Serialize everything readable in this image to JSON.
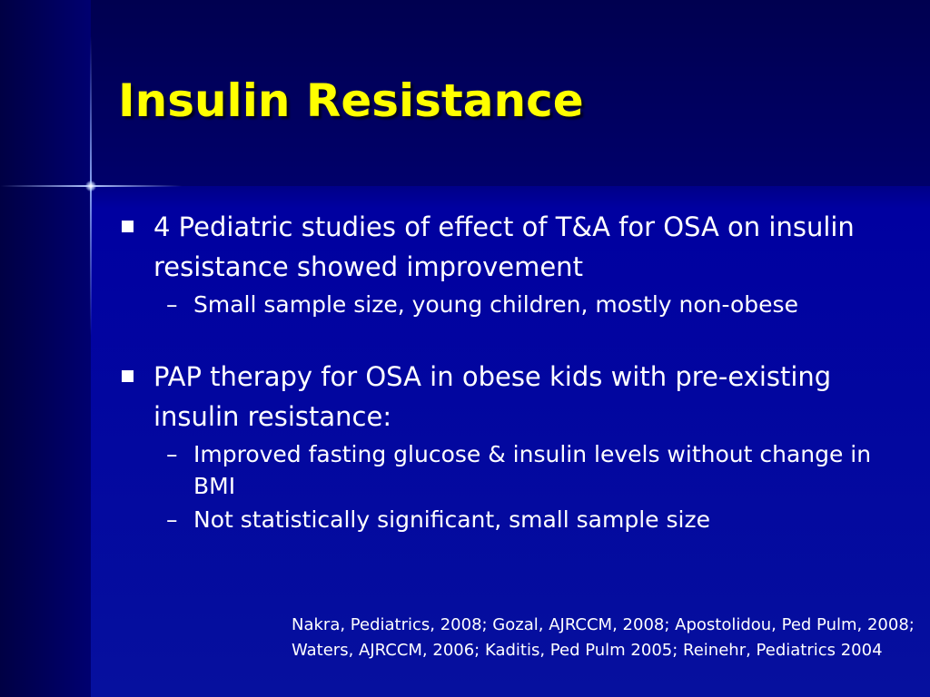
{
  "slide": {
    "title": "Insulin Resistance",
    "bullets": [
      {
        "text": "4 Pediatric studies of effect of T&A for OSA on insulin resistance showed improvement",
        "subs": [
          "Small sample size, young children, mostly non-obese"
        ]
      },
      {
        "text": "PAP therapy for OSA in obese kids with pre-existing insulin resistance:",
        "subs": [
          "Improved fasting glucose & insulin levels without change in BMI",
          "Not statistically significant, small sample size"
        ]
      }
    ],
    "dash_glyph": "–",
    "citation": "Nakra, Pediatrics, 2008; Gozal, AJRCCM, 2008; Apostolidou, Ped Pulm, 2008; Waters, AJRCCM, 2006; Kaditis, Ped Pulm 2005; Reinehr, Pediatrics 2004",
    "colors": {
      "background": "#0000a0",
      "title": "#ffff00",
      "text": "#ffffff",
      "accent_line": "#96b4ff"
    }
  }
}
